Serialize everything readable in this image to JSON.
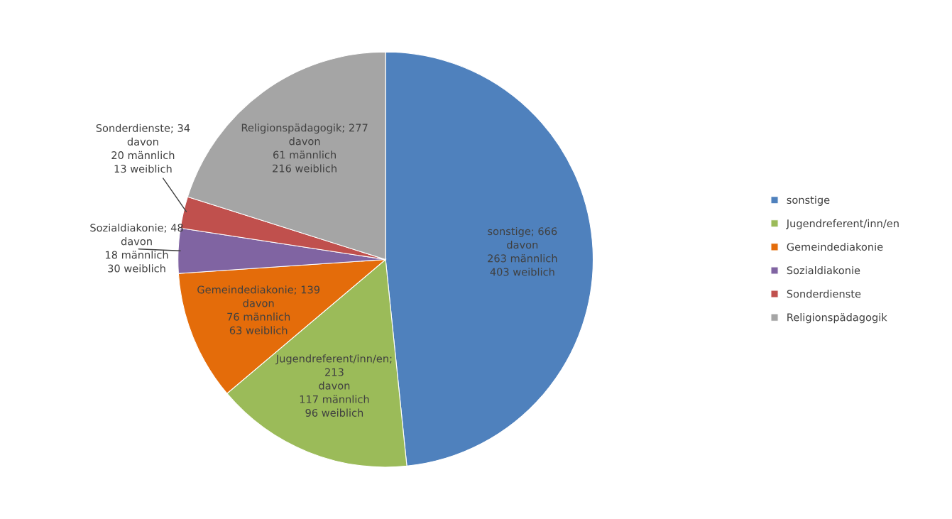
{
  "chart_data": {
    "type": "pie",
    "categories": [
      "sonstige",
      "Jugendreferent/inn/en",
      "Gemeindediakonie",
      "Sozialdiakonie",
      "Sonderdienste",
      "Religionspädagogik"
    ],
    "values": [
      666,
      213,
      139,
      48,
      34,
      277
    ],
    "colors": [
      "#4f81bd",
      "#9bbb59",
      "#e46c0a",
      "#8064a2",
      "#c0504d",
      "#a5a5a5"
    ],
    "value_labels": [
      "sonstige; 666\ndavon\n263 männlich\n403 weiblich",
      "Jugendreferent/inn/en;\n213\ndavon\n117 männlich\n96 weiblich",
      "Gemeindediakonie; 139\ndavon\n76 männlich\n63 weiblich",
      "Sozialdiakonie; 48\ndavon\n18 männlich\n30 weiblich",
      "Sonderdienste; 34\ndavon\n20 männlich\n13 weiblich",
      "Religionspädagogik; 277\ndavon\n61 männlich\n216 weiblich"
    ],
    "legend": "right"
  }
}
